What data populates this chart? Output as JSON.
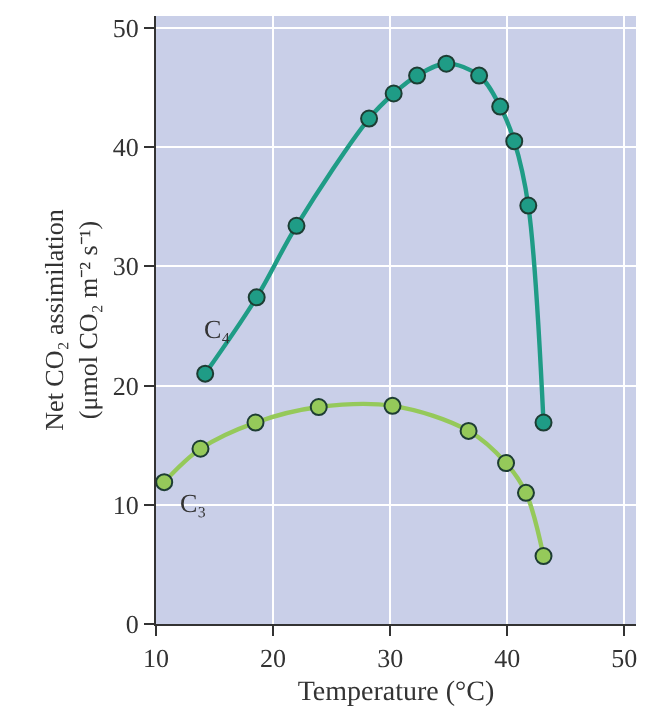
{
  "chart_data": {
    "type": "line",
    "xlabel": "Temperature (°C)",
    "ylabel": "Net CO₂ assimilation\n(μmol CO₂ m⁻² s⁻¹)",
    "series": [
      {
        "name": "C₄",
        "color": "#1f9c86",
        "x": [
          14.2,
          18.6,
          22.0,
          28.2,
          30.3,
          32.3,
          34.8,
          37.6,
          39.4,
          40.6,
          41.8,
          43.1
        ],
        "values": [
          21,
          27.4,
          33.4,
          42.4,
          44.5,
          46.0,
          47.0,
          46.0,
          43.4,
          40.5,
          35.1,
          16.9
        ]
      },
      {
        "name": "C₃",
        "color": "#95c95a",
        "x": [
          10.7,
          13.8,
          18.5,
          23.9,
          30.2,
          36.7,
          39.9,
          41.6,
          43.1
        ],
        "values": [
          11.9,
          14.7,
          16.9,
          18.2,
          18.3,
          16.2,
          13.5,
          11.0,
          5.7
        ]
      }
    ],
    "xlim": [
      10,
      51
    ],
    "xticks": [
      10,
      20,
      30,
      40,
      50
    ],
    "ylim": [
      0,
      51
    ],
    "yticks": [
      0,
      10,
      20,
      30,
      40,
      50
    ],
    "grid": true,
    "marker": "circle",
    "line_style": "solid",
    "legend": false
  }
}
